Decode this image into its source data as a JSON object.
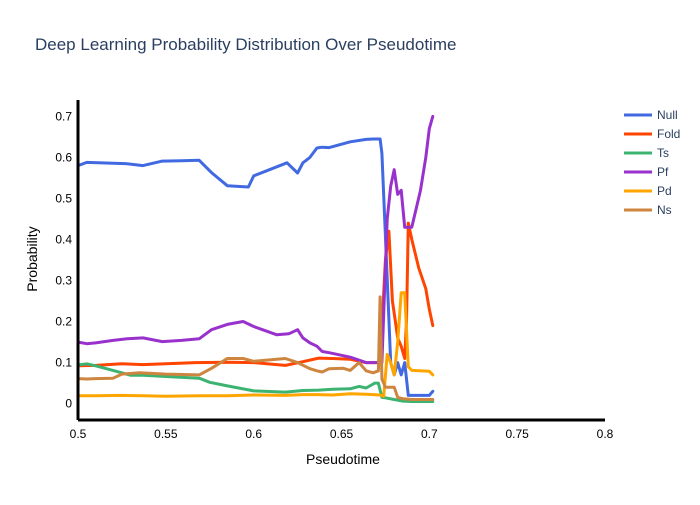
{
  "chart_data": {
    "type": "line",
    "title": "Deep Learning Probability Distribution Over Pseudotime",
    "xlabel": "Pseudotime",
    "ylabel": "Probability",
    "xlim": [
      0.5,
      0.8
    ],
    "ylim": [
      -0.04,
      0.74
    ],
    "xticks": [
      0.5,
      0.55,
      0.6,
      0.65,
      0.7,
      0.75,
      0.8
    ],
    "xtick_labels": [
      "0.5",
      "0.55",
      "0.6",
      "0.65",
      "0.7",
      "0.75",
      "0.8"
    ],
    "yticks": [
      0,
      0.1,
      0.2,
      0.3,
      0.4,
      0.5,
      0.6,
      0.7
    ],
    "ytick_labels": [
      "0",
      "0.1",
      "0.2",
      "0.3",
      "0.4",
      "0.5",
      "0.6",
      "0.7"
    ],
    "grid": false,
    "legend_position": "top-right",
    "series": [
      {
        "name": "Null",
        "color": "#4169E1",
        "x": [
          0.5,
          0.505,
          0.52,
          0.527,
          0.537,
          0.548,
          0.559,
          0.569,
          0.576,
          0.585,
          0.597,
          0.6,
          0.619,
          0.625,
          0.628,
          0.632,
          0.636,
          0.639,
          0.643,
          0.655,
          0.664,
          0.668,
          0.672,
          0.673,
          0.675,
          0.678,
          0.68,
          0.682,
          0.684,
          0.686,
          0.688,
          0.69,
          0.7,
          0.702
        ],
        "y": [
          0.58,
          0.588,
          0.586,
          0.585,
          0.58,
          0.591,
          0.592,
          0.593,
          0.563,
          0.531,
          0.528,
          0.555,
          0.587,
          0.562,
          0.587,
          0.6,
          0.623,
          0.625,
          0.624,
          0.638,
          0.644,
          0.645,
          0.645,
          0.61,
          0.41,
          0.1,
          0.07,
          0.1,
          0.07,
          0.1,
          0.02,
          0.02,
          0.02,
          0.03
        ]
      },
      {
        "name": "Fold",
        "color": "#FF4500",
        "x": [
          0.5,
          0.51,
          0.525,
          0.537,
          0.55,
          0.567,
          0.585,
          0.6,
          0.618,
          0.628,
          0.637,
          0.645,
          0.655,
          0.664,
          0.672,
          0.675,
          0.677,
          0.679,
          0.68,
          0.682,
          0.684,
          0.686,
          0.687,
          0.688,
          0.69,
          0.694,
          0.698,
          0.7,
          0.702
        ],
        "y": [
          0.092,
          0.093,
          0.097,
          0.095,
          0.097,
          0.1,
          0.101,
          0.1,
          0.093,
          0.102,
          0.111,
          0.11,
          0.108,
          0.1,
          0.1,
          0.35,
          0.42,
          0.25,
          0.22,
          0.16,
          0.14,
          0.11,
          0.2,
          0.44,
          0.4,
          0.33,
          0.28,
          0.23,
          0.19
        ]
      },
      {
        "name": "Ts",
        "color": "#3CB371",
        "x": [
          0.5,
          0.505,
          0.51,
          0.525,
          0.53,
          0.537,
          0.55,
          0.569,
          0.575,
          0.585,
          0.6,
          0.618,
          0.628,
          0.637,
          0.645,
          0.655,
          0.66,
          0.664,
          0.669,
          0.671,
          0.673,
          0.675,
          0.68,
          0.685,
          0.69,
          0.7,
          0.702
        ],
        "y": [
          0.094,
          0.097,
          0.092,
          0.075,
          0.069,
          0.069,
          0.066,
          0.062,
          0.052,
          0.043,
          0.031,
          0.028,
          0.032,
          0.033,
          0.035,
          0.036,
          0.042,
          0.038,
          0.05,
          0.05,
          0.015,
          0.014,
          0.01,
          0.006,
          0.005,
          0.005,
          0.005
        ]
      },
      {
        "name": "Pf",
        "color": "#9932CC",
        "x": [
          0.5,
          0.505,
          0.51,
          0.52,
          0.528,
          0.537,
          0.548,
          0.559,
          0.569,
          0.576,
          0.585,
          0.594,
          0.6,
          0.613,
          0.62,
          0.625,
          0.628,
          0.632,
          0.636,
          0.639,
          0.643,
          0.655,
          0.664,
          0.668,
          0.673,
          0.676,
          0.678,
          0.68,
          0.682,
          0.684,
          0.686,
          0.69,
          0.695,
          0.698,
          0.7,
          0.702
        ],
        "y": [
          0.15,
          0.146,
          0.148,
          0.154,
          0.158,
          0.16,
          0.151,
          0.154,
          0.158,
          0.18,
          0.193,
          0.2,
          0.188,
          0.168,
          0.17,
          0.18,
          0.16,
          0.148,
          0.14,
          0.127,
          0.124,
          0.113,
          0.1,
          0.1,
          0.1,
          0.45,
          0.53,
          0.57,
          0.51,
          0.52,
          0.43,
          0.43,
          0.52,
          0.6,
          0.67,
          0.7
        ]
      },
      {
        "name": "Pd",
        "color": "#FFA500",
        "x": [
          0.5,
          0.51,
          0.525,
          0.537,
          0.55,
          0.569,
          0.585,
          0.6,
          0.618,
          0.628,
          0.637,
          0.645,
          0.655,
          0.664,
          0.672,
          0.674,
          0.676,
          0.678,
          0.68,
          0.682,
          0.684,
          0.686,
          0.688,
          0.69,
          0.7,
          0.702
        ],
        "y": [
          0.019,
          0.019,
          0.02,
          0.019,
          0.018,
          0.019,
          0.019,
          0.021,
          0.02,
          0.022,
          0.022,
          0.021,
          0.024,
          0.023,
          0.021,
          0.018,
          0.12,
          0.1,
          0.07,
          0.15,
          0.27,
          0.27,
          0.09,
          0.081,
          0.079,
          0.07
        ]
      },
      {
        "name": "Ns",
        "color": "#CD853F",
        "x": [
          0.5,
          0.505,
          0.51,
          0.52,
          0.525,
          0.535,
          0.55,
          0.569,
          0.576,
          0.585,
          0.594,
          0.6,
          0.618,
          0.625,
          0.632,
          0.636,
          0.639,
          0.643,
          0.651,
          0.655,
          0.66,
          0.664,
          0.668,
          0.671,
          0.672,
          0.673,
          0.675,
          0.677,
          0.68,
          0.682,
          0.685,
          0.69,
          0.7,
          0.702
        ],
        "y": [
          0.061,
          0.06,
          0.061,
          0.062,
          0.072,
          0.075,
          0.072,
          0.07,
          0.086,
          0.11,
          0.11,
          0.103,
          0.11,
          0.1,
          0.085,
          0.08,
          0.077,
          0.085,
          0.086,
          0.081,
          0.1,
          0.08,
          0.075,
          0.08,
          0.26,
          0.06,
          0.04,
          0.04,
          0.04,
          0.015,
          0.012,
          0.01,
          0.01,
          0.01
        ]
      }
    ]
  }
}
